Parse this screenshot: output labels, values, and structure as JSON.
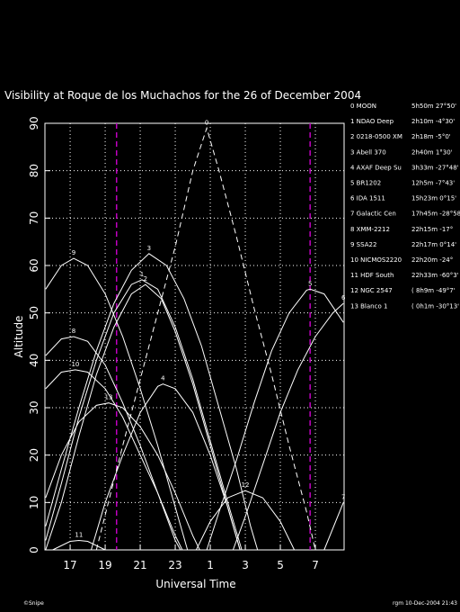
{
  "chart_data": {
    "type": "line",
    "title": "Visibility at Roque de los Muchachos for the 26 of December 2004",
    "xlabel": "Universal Time",
    "ylabel": "Altitude",
    "footer_left": "©Snipe",
    "footer_right": "rgm 10-Dec-2004 21:43",
    "xlim": [
      15.56,
      32.64
    ],
    "ylim": [
      0,
      90
    ],
    "xticks": [
      17,
      19,
      21,
      23,
      {
        "value": 25,
        "label": "1"
      },
      {
        "value": 27,
        "label": "3"
      },
      {
        "value": 29,
        "label": "5"
      },
      {
        "value": 31,
        "label": "7"
      }
    ],
    "yticks": [
      0,
      10,
      20,
      30,
      40,
      50,
      60,
      70,
      80,
      90
    ],
    "grid": true,
    "markers_x": [
      19.65,
      30.7
    ],
    "marker_color": "#c000c0",
    "series": [
      {
        "label": "0",
        "name": "0 MOON",
        "coords": "5h50m 27°50'",
        "color": "#ffffff",
        "dashed": true,
        "x": [
          18.5,
          20,
          21,
          22,
          23,
          24,
          24.8,
          25.5,
          26.5,
          27.5,
          28.5,
          29.5,
          30.5,
          31
        ],
        "values": [
          0,
          22,
          36,
          50,
          64,
          80,
          89,
          80,
          66,
          51,
          37,
          22,
          8,
          0
        ]
      },
      {
        "label": "1",
        "name": "1 NDAO Deep",
        "coords": "2h10m -4°30'",
        "color": "#ffffff",
        "x": [
          15.6,
          16.5,
          17.5,
          18.5,
          19.5,
          20.5,
          21.1,
          22,
          23,
          24,
          25,
          26,
          26.8
        ],
        "values": [
          2,
          14,
          28,
          40,
          50,
          56,
          57,
          55,
          47,
          36,
          23,
          10,
          0
        ]
      },
      {
        "label": "2",
        "name": "2 0218-0500 XM",
        "coords": "2h18m -5°0'",
        "color": "#ffffff",
        "x": [
          15.6,
          16.5,
          17.5,
          18.5,
          19.5,
          20.5,
          21.3,
          22.2,
          23,
          24,
          25,
          26,
          26.7
        ],
        "values": [
          0,
          10,
          24,
          37,
          47,
          54,
          56,
          53,
          46,
          35,
          22,
          9,
          0
        ]
      },
      {
        "label": "3",
        "name": "3 Abell 370",
        "coords": "2h40m 1°30'",
        "color": "#ffffff",
        "x": [
          15.6,
          16.5,
          17.5,
          18.5,
          19.5,
          20.5,
          21.5,
          22.5,
          23.5,
          24.5,
          25.5,
          26.5,
          27.3,
          27.7
        ],
        "values": [
          5,
          17,
          30,
          42,
          52,
          59,
          62.5,
          60,
          53,
          43,
          30,
          17,
          5,
          0
        ]
      },
      {
        "label": "4",
        "name": "4 AXAF Deep Su",
        "coords": "3h33m -27°48'",
        "color": "#ffffff",
        "x": [
          18.2,
          19,
          20,
          21,
          22,
          22.3,
          23,
          24,
          25,
          26,
          26.7
        ],
        "values": [
          0,
          10,
          20,
          29,
          34.5,
          35,
          34,
          29,
          20,
          9,
          0
        ]
      },
      {
        "label": "5",
        "name": "5 BR1202",
        "coords": "12h5m -7°43'",
        "color": "#ffffff",
        "x": [
          24.8,
          25.5,
          26.5,
          27.5,
          28.5,
          29.5,
          30.5,
          30.7,
          31.5,
          32.6
        ],
        "values": [
          0,
          8,
          19,
          31,
          42,
          50,
          54.8,
          55,
          54,
          48
        ]
      },
      {
        "label": "6",
        "name": "6 IDA 1511",
        "coords": "15h23m 0°15'",
        "color": "#ffffff",
        "x": [
          26.3,
          27,
          28,
          29,
          30,
          31,
          32,
          32.6
        ],
        "values": [
          0,
          7,
          18,
          29,
          38,
          45,
          50,
          52
        ]
      },
      {
        "label": "7",
        "name": "7 Galactic Cen",
        "coords": "17h45m -28°58'",
        "color": "#ffffff",
        "x": [
          31.5,
          32.6
        ],
        "values": [
          0,
          10
        ]
      },
      {
        "label": "8",
        "name": "8 XMM-2212",
        "coords": "22h15m -17°",
        "color": "#ffffff",
        "x": [
          15.6,
          16.5,
          17.2,
          18,
          19,
          20,
          21,
          22,
          23,
          23.3
        ],
        "values": [
          41,
          44.5,
          45,
          44,
          39,
          31,
          22,
          12,
          2,
          0
        ]
      },
      {
        "label": "9",
        "name": "9 SSA22",
        "coords": "22h17m 0°14'",
        "color": "#ffffff",
        "x": [
          15.6,
          16.5,
          17.2,
          18,
          19,
          20,
          21,
          22,
          23,
          23.7
        ],
        "values": [
          55,
          60,
          61.5,
          60,
          54,
          45,
          34,
          22,
          9,
          0
        ]
      },
      {
        "label": "10",
        "name": "10 NICMOS2220",
        "coords": "22h20m -24°",
        "color": "#ffffff",
        "x": [
          15.6,
          16.5,
          17.3,
          18,
          19,
          20,
          21,
          22,
          23,
          23.4
        ],
        "values": [
          34,
          37.5,
          38,
          37.5,
          34,
          28,
          20,
          12,
          3,
          0
        ]
      },
      {
        "label": "11",
        "name": "11 HDF South",
        "coords": "22h33m -60°3'",
        "color": "#ffffff",
        "x": [
          16,
          17,
          17.5,
          18,
          19
        ],
        "values": [
          0,
          1.8,
          2,
          1.8,
          0
        ]
      },
      {
        "label": "12",
        "name": "12 NGC 2547",
        "coords": "( 8h9m -49°7'",
        "color": "#ffffff",
        "x": [
          24.2,
          25,
          26,
          27,
          28,
          29,
          29.8
        ],
        "values": [
          0,
          6,
          11,
          12.5,
          11,
          6,
          0
        ]
      },
      {
        "label": "13",
        "name": "13 Blanco 1",
        "coords": "( 0h1m -30°13'",
        "color": "#ffffff",
        "x": [
          15.6,
          16.5,
          17.5,
          18.5,
          19.2,
          20,
          21,
          22,
          23,
          24,
          24.4
        ],
        "values": [
          11,
          20,
          27,
          30.5,
          31,
          30,
          26,
          20,
          12,
          3,
          0
        ]
      }
    ]
  }
}
